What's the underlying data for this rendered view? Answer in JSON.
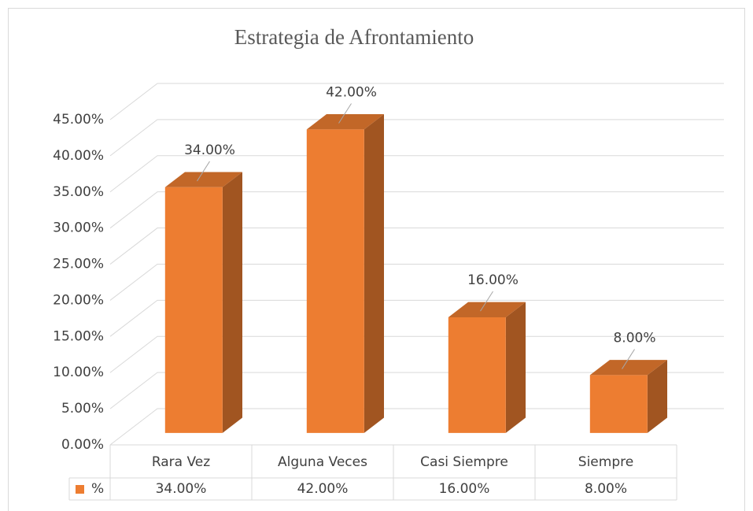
{
  "chart_data": {
    "type": "bar3d",
    "title": "Estrategia de Afrontamiento",
    "categories": [
      "Rara Vez",
      "Alguna Veces",
      "Casi Siempre",
      "Siempre"
    ],
    "series": [
      {
        "name": "%",
        "color": "#ed7d31",
        "values": [
          34,
          42,
          16,
          8
        ],
        "value_labels": [
          "34.00%",
          "42.00%",
          "16.00%",
          "8.00%"
        ]
      }
    ],
    "ylim": [
      0,
      45
    ],
    "yticks": [
      {
        "value": 0,
        "label": "0.00%"
      },
      {
        "value": 5,
        "label": "5.00%"
      },
      {
        "value": 10,
        "label": "10.00%"
      },
      {
        "value": 15,
        "label": "15.00%"
      },
      {
        "value": 20,
        "label": "20.00%"
      },
      {
        "value": 25,
        "label": "25.00%"
      },
      {
        "value": 30,
        "label": "30.00%"
      },
      {
        "value": 35,
        "label": "35.00%"
      },
      {
        "value": 40,
        "label": "40.00%"
      },
      {
        "value": 45,
        "label": "45.00%"
      }
    ],
    "grid": true,
    "data_table": true
  }
}
